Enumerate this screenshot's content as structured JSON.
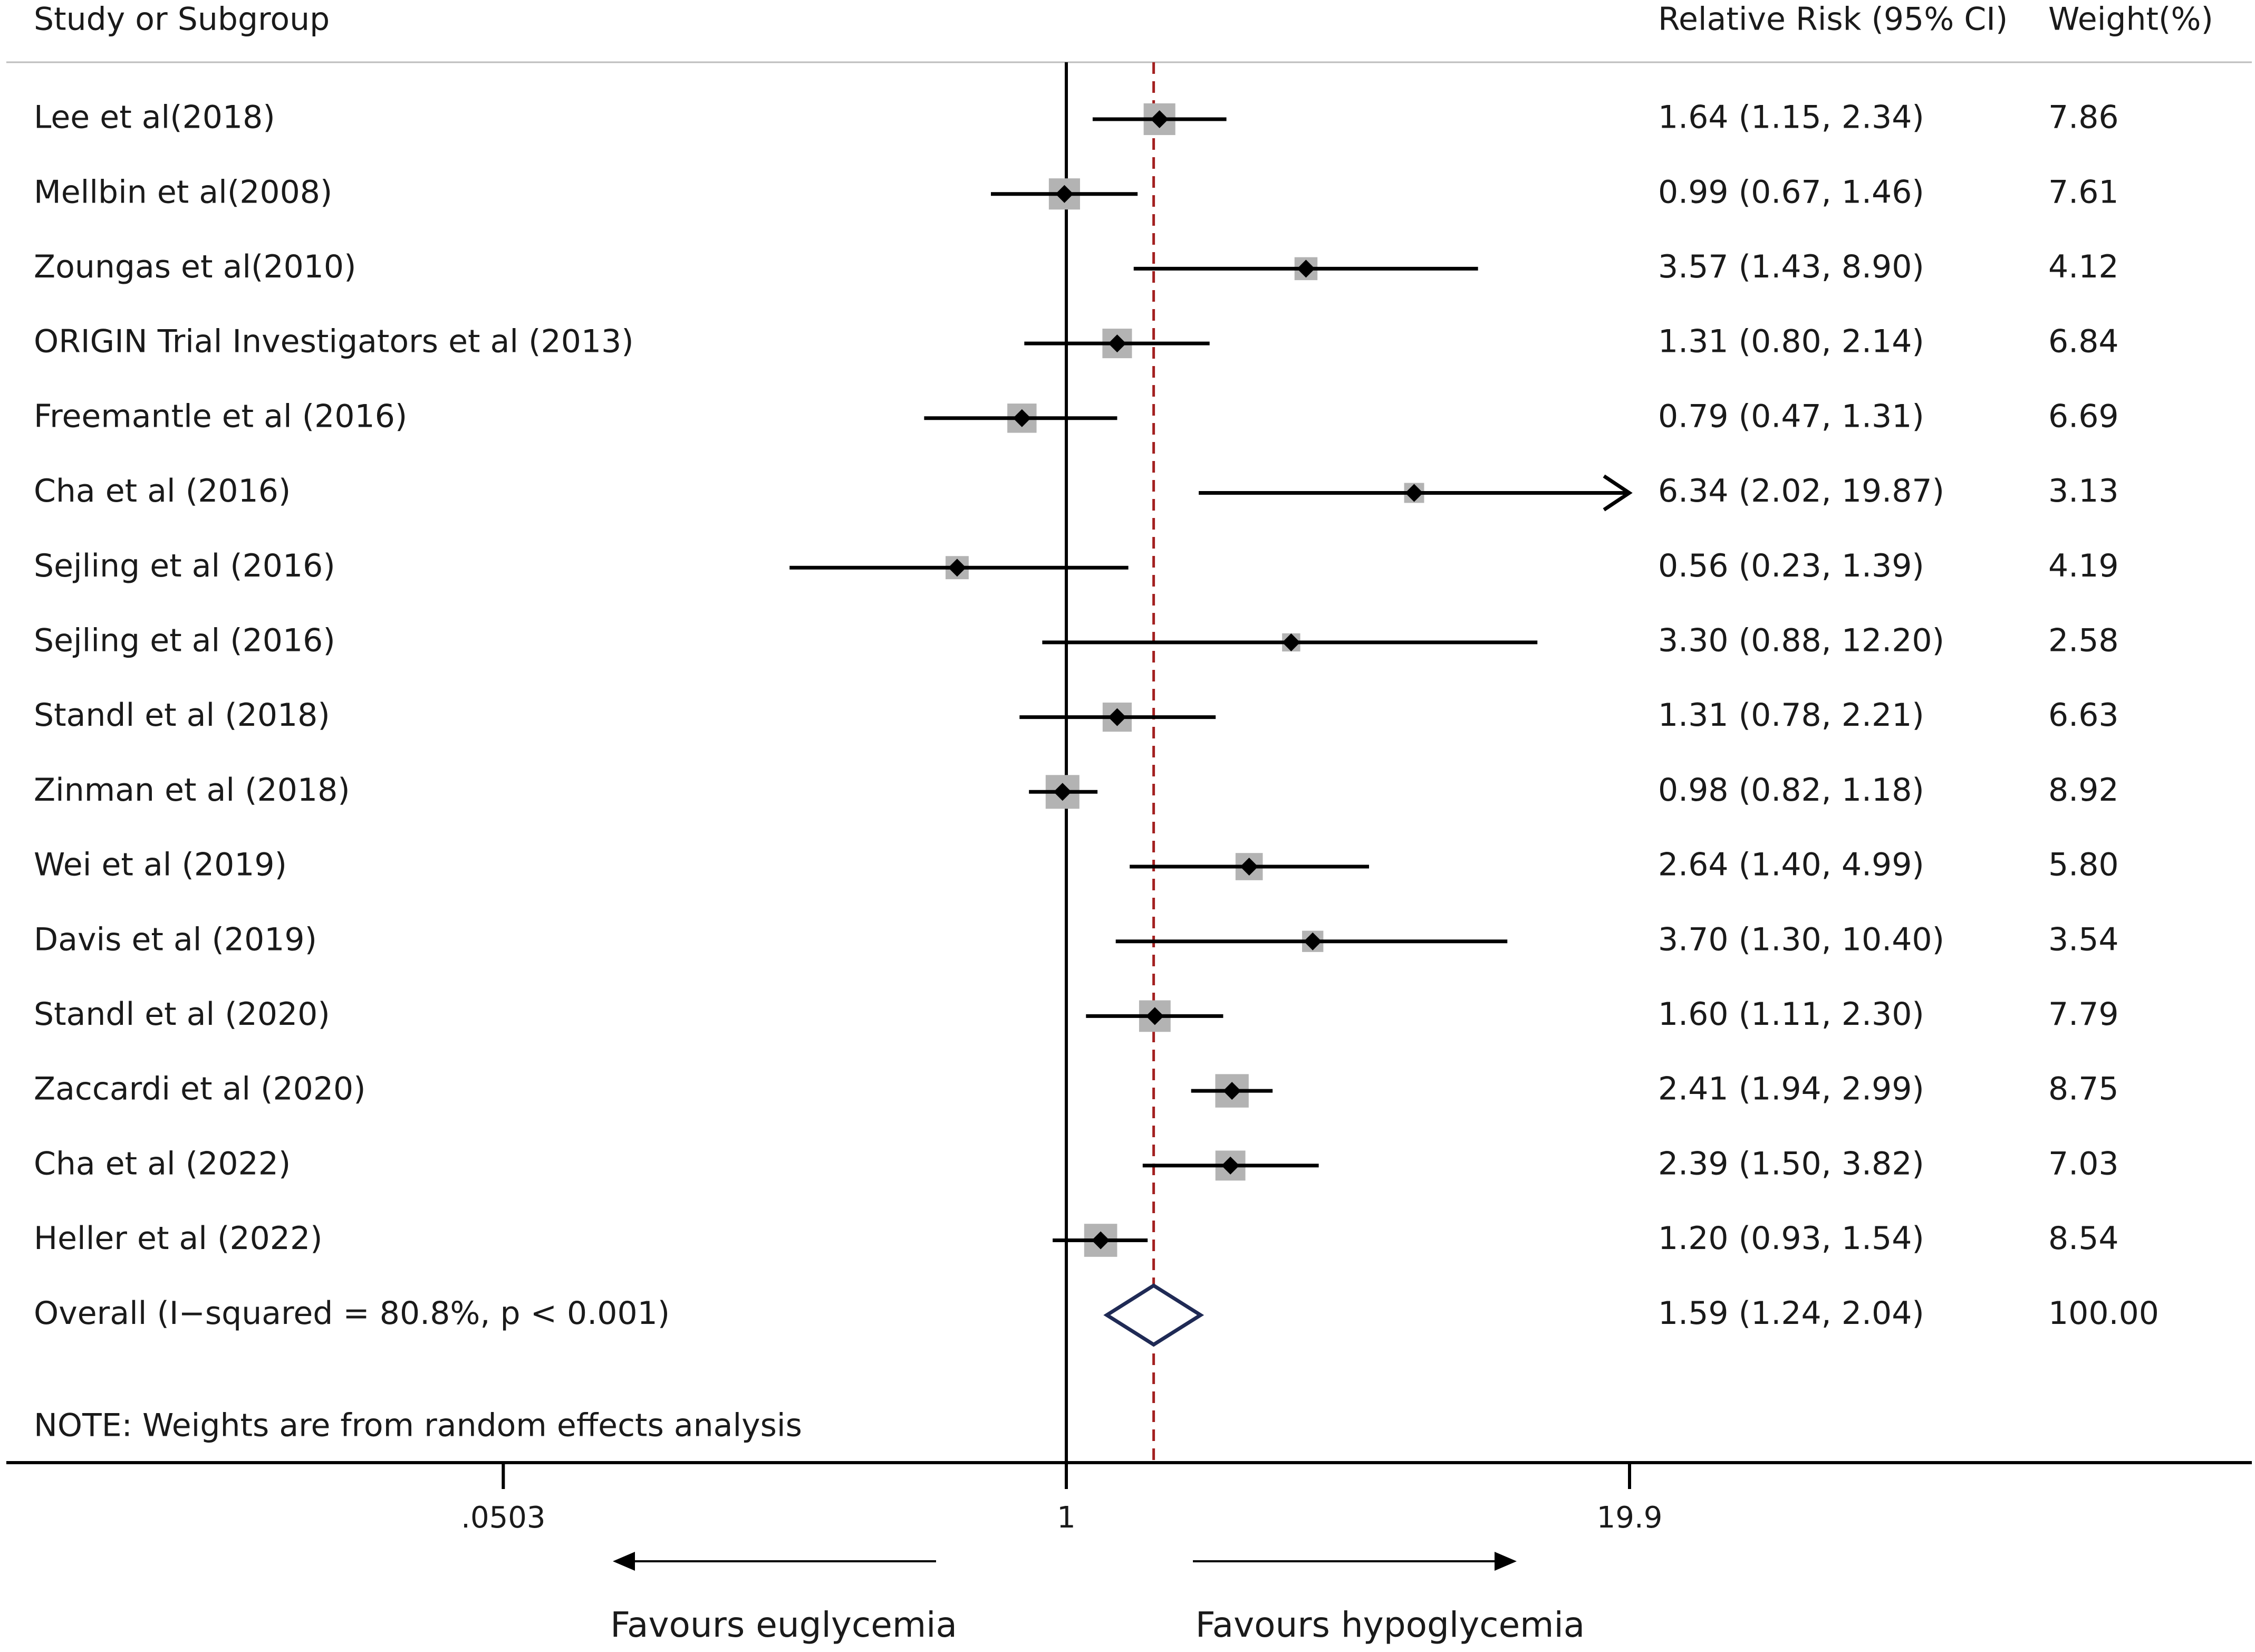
{
  "chart_data": {
    "type": "forest",
    "scale": "log",
    "headers": {
      "study": "Study or Subgroup",
      "effect": "Relative Risk (95% CI)",
      "weight": "Weight(%)"
    },
    "studies": [
      {
        "name": "Lee et al(2018)",
        "rr": 1.64,
        "lo": 1.15,
        "hi": 2.34,
        "ci_text": "1.64 (1.15, 2.34)",
        "weight": 7.86,
        "weight_text": "7.86"
      },
      {
        "name": "Mellbin et al(2008)",
        "rr": 0.99,
        "lo": 0.67,
        "hi": 1.46,
        "ci_text": "0.99 (0.67, 1.46)",
        "weight": 7.61,
        "weight_text": "7.61"
      },
      {
        "name": "Zoungas et al(2010)",
        "rr": 3.57,
        "lo": 1.43,
        "hi": 8.9,
        "ci_text": "3.57 (1.43, 8.90)",
        "weight": 4.12,
        "weight_text": "4.12"
      },
      {
        "name": "ORIGIN Trial Investigators et al (2013)",
        "rr": 1.31,
        "lo": 0.8,
        "hi": 2.14,
        "ci_text": "1.31 (0.80, 2.14)",
        "weight": 6.84,
        "weight_text": "6.84"
      },
      {
        "name": "Freemantle et al (2016)",
        "rr": 0.79,
        "lo": 0.47,
        "hi": 1.31,
        "ci_text": "0.79 (0.47, 1.31)",
        "weight": 6.69,
        "weight_text": "6.69"
      },
      {
        "name": "Cha et al (2016)",
        "rr": 6.34,
        "lo": 2.02,
        "hi": 19.87,
        "ci_text": "6.34 (2.02, 19.87)",
        "weight": 3.13,
        "weight_text": "3.13",
        "truncated_right": true
      },
      {
        "name": "Sejling et al (2016)",
        "rr": 0.56,
        "lo": 0.23,
        "hi": 1.39,
        "ci_text": "0.56 (0.23, 1.39)",
        "weight": 4.19,
        "weight_text": "4.19"
      },
      {
        "name": "Sejling et al (2016)",
        "rr": 3.3,
        "lo": 0.88,
        "hi": 12.2,
        "ci_text": "3.30 (0.88, 12.20)",
        "weight": 2.58,
        "weight_text": "2.58"
      },
      {
        "name": "Standl  et al (2018)",
        "rr": 1.31,
        "lo": 0.78,
        "hi": 2.21,
        "ci_text": "1.31 (0.78, 2.21)",
        "weight": 6.63,
        "weight_text": "6.63"
      },
      {
        "name": "Zinman et al (2018)",
        "rr": 0.98,
        "lo": 0.82,
        "hi": 1.18,
        "ci_text": "0.98 (0.82, 1.18)",
        "weight": 8.92,
        "weight_text": "8.92"
      },
      {
        "name": "Wei et al (2019)",
        "rr": 2.64,
        "lo": 1.4,
        "hi": 4.99,
        "ci_text": "2.64 (1.40, 4.99)",
        "weight": 5.8,
        "weight_text": "5.80"
      },
      {
        "name": "Davis et al (2019)",
        "rr": 3.7,
        "lo": 1.3,
        "hi": 10.4,
        "ci_text": "3.70 (1.30, 10.40)",
        "weight": 3.54,
        "weight_text": "3.54"
      },
      {
        "name": "Standl et al (2020)",
        "rr": 1.6,
        "lo": 1.11,
        "hi": 2.3,
        "ci_text": "1.60 (1.11, 2.30)",
        "weight": 7.79,
        "weight_text": "7.79"
      },
      {
        "name": "Zaccardi et al (2020)",
        "rr": 2.41,
        "lo": 1.94,
        "hi": 2.99,
        "ci_text": "2.41 (1.94, 2.99)",
        "weight": 8.75,
        "weight_text": "8.75"
      },
      {
        "name": "Cha et al (2022)",
        "rr": 2.39,
        "lo": 1.5,
        "hi": 3.82,
        "ci_text": "2.39 (1.50, 3.82)",
        "weight": 7.03,
        "weight_text": "7.03"
      },
      {
        "name": "Heller et al (2022)",
        "rr": 1.2,
        "lo": 0.93,
        "hi": 1.54,
        "ci_text": "1.20 (0.93, 1.54)",
        "weight": 8.54,
        "weight_text": "8.54"
      }
    ],
    "overall": {
      "name": "Overall  (I−squared = 80.8%, p < 0.001)",
      "rr": 1.59,
      "lo": 1.24,
      "hi": 2.04,
      "ci_text": "1.59 (1.24, 2.04)",
      "weight_text": "100.00"
    },
    "note": "NOTE: Weights are from random effects analysis",
    "xaxis": {
      "ticks": [
        0.0503,
        1,
        19.9
      ],
      "tick_labels": [
        ".0503",
        "1",
        "19.9"
      ],
      "range": [
        0.0503,
        19.9
      ]
    },
    "null_value": 1,
    "favours_left": "Favours euglycemia",
    "favours_right": "Favours hypoglycemia",
    "colors": {
      "ink": "#000000",
      "text": "#1a1a1a",
      "box": "#b3b3b3",
      "overall_diamond": "#1f2a55",
      "reference_line": "#a32020",
      "header_rule": "#bdbdbd"
    }
  }
}
